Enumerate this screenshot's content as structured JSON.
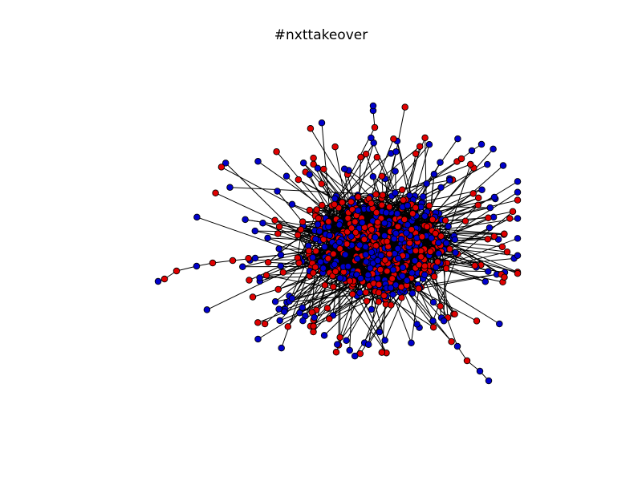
{
  "title": "#nxttakeover",
  "colors": {
    "background": "#ffffff",
    "edge": "#000000",
    "node_red": "#e00000",
    "node_blue": "#0000cc",
    "node_outline": "#000000"
  }
}
